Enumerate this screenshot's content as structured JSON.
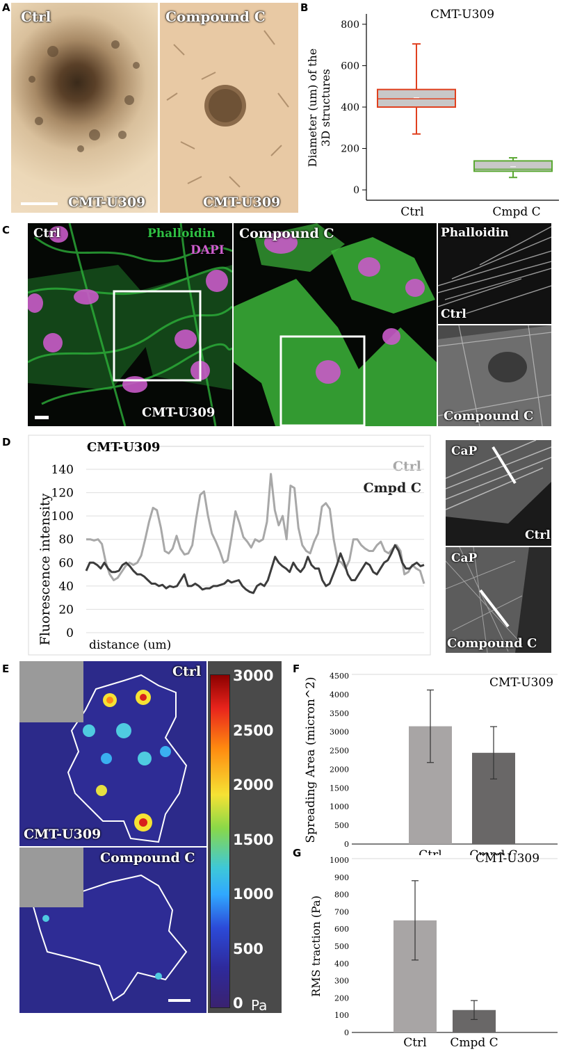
{
  "panel_labels": {
    "a": "A",
    "b": "B",
    "c": "C",
    "d": "D",
    "e": "E",
    "f": "F",
    "g": "G"
  },
  "panel_a": {
    "left_label": "Ctrl",
    "right_label": "Compound C",
    "left_caption": "CMT-U309",
    "right_caption": "CMT-U309"
  },
  "panel_b": {
    "title": "CMT-U309",
    "ylabel_line1": "Diameter (um) of the",
    "ylabel_line2": "3D structures",
    "yticks": [
      "0",
      "200",
      "400",
      "600",
      "800"
    ],
    "categories": [
      "Ctrl",
      "Cmpd C"
    ],
    "colors": {
      "ctrl": "#e0401e",
      "cmpd": "#5aa832",
      "box_fill": "#c8c8c8"
    }
  },
  "panel_c": {
    "left_label": "Ctrl",
    "stain1": "Phalloidin",
    "stain2": "DAPI",
    "left_caption": "CMT-U309",
    "mid_label": "Compound C",
    "right_top_label": "Phalloidin",
    "right_mid_label": "Ctrl",
    "right_bottom_label": "Compound C"
  },
  "panel_d": {
    "legend_ctrl": "Ctrl",
    "legend_cmpd": "Cmpd C",
    "inset_top_label": "CaP",
    "inset_top_caption": "Ctrl",
    "inset_bottom_label": "CaP",
    "inset_bottom_caption": "Compound C"
  },
  "panel_e": {
    "top_label": "Ctrl",
    "top_caption": "CMT-U309",
    "bottom_label": "Compound C",
    "unit": "Pa",
    "colorbar_ticks": [
      "3000",
      "2500",
      "2000",
      "1500",
      "1000",
      "500",
      "0"
    ]
  },
  "chart_data": [
    {
      "type": "box",
      "panel": "B",
      "title": "CMT-U309",
      "ylabel": "Diameter (um) of the 3D structures",
      "ylim": [
        -50,
        850
      ],
      "categories": [
        "Ctrl",
        "Cmpd C"
      ],
      "boxes": [
        {
          "name": "Ctrl",
          "min": 270,
          "q1": 400,
          "median": 440,
          "mean": 445,
          "q3": 485,
          "max": 705
        },
        {
          "name": "Cmpd C",
          "min": 60,
          "q1": 90,
          "median": 100,
          "mean": 112,
          "q3": 140,
          "max": 155
        }
      ]
    },
    {
      "type": "line",
      "panel": "D",
      "title": "CMT-U309",
      "xlabel": "distance (um)",
      "ylabel": "Fluorescence intensity",
      "ylim": [
        0,
        140
      ],
      "yticks": [
        "0",
        "20",
        "40",
        "60",
        "80",
        "100",
        "120",
        "140"
      ],
      "series": [
        {
          "name": "Ctrl",
          "color": "#a8a8a8",
          "values": [
            80,
            80,
            79,
            80,
            76,
            60,
            50,
            45,
            47,
            52,
            57,
            60,
            58,
            60,
            66,
            80,
            95,
            107,
            105,
            90,
            70,
            68,
            72,
            83,
            72,
            67,
            68,
            75,
            98,
            118,
            121,
            100,
            85,
            78,
            70,
            60,
            62,
            82,
            104,
            94,
            82,
            78,
            73,
            80,
            78,
            80,
            95,
            136,
            105,
            92,
            100,
            80,
            126,
            124,
            90,
            75,
            70,
            68,
            78,
            85,
            108,
            111,
            106,
            80,
            62,
            60,
            55,
            62,
            80,
            80,
            75,
            72,
            70,
            70,
            75,
            78,
            70,
            68,
            72,
            75,
            70,
            50,
            52,
            58,
            55,
            53,
            42
          ]
        },
        {
          "name": "Cmpd C",
          "color": "#3c3c3c",
          "values": [
            53,
            60,
            60,
            58,
            55,
            60,
            55,
            52,
            52,
            53,
            58,
            60,
            57,
            53,
            50,
            50,
            48,
            45,
            42,
            42,
            40,
            41,
            38,
            40,
            39,
            40,
            45,
            50,
            40,
            40,
            42,
            40,
            37,
            38,
            38,
            40,
            40,
            41,
            42,
            45,
            43,
            44,
            45,
            40,
            37,
            35,
            34,
            40,
            42,
            40,
            45,
            55,
            65,
            60,
            57,
            55,
            52,
            60,
            55,
            52,
            56,
            65,
            58,
            55,
            55,
            45,
            40,
            42,
            50,
            58,
            68,
            60,
            50,
            45,
            45,
            50,
            55,
            60,
            58,
            52,
            50,
            55,
            60,
            62,
            68,
            75,
            70,
            60,
            55,
            55,
            58,
            60,
            57,
            58
          ]
        }
      ]
    },
    {
      "type": "bar",
      "panel": "F",
      "title": "CMT-U309",
      "ylabel": "Spreading Area (micron^2)",
      "ylim": [
        0,
        4500
      ],
      "yticks": [
        "0",
        "500",
        "1000",
        "1500",
        "2000",
        "2500",
        "3000",
        "3500",
        "4000",
        "4500"
      ],
      "categories": [
        "Ctrl",
        "Cmpd C"
      ],
      "values": [
        3150,
        2440
      ],
      "errors": [
        970,
        700
      ],
      "colors": [
        "#a8a5a5",
        "#696767"
      ]
    },
    {
      "type": "bar",
      "panel": "G",
      "title": "CMT-U309",
      "ylabel": "RMS traction (Pa)",
      "ylim": [
        0,
        1000
      ],
      "yticks": [
        "0",
        "100",
        "200",
        "300",
        "400",
        "500",
        "600",
        "700",
        "800",
        "900",
        "1000"
      ],
      "categories": [
        "Ctrl",
        "Cmpd C"
      ],
      "values": [
        650,
        130
      ],
      "errors": [
        230,
        55
      ],
      "colors": [
        "#a8a5a5",
        "#696767"
      ]
    }
  ]
}
